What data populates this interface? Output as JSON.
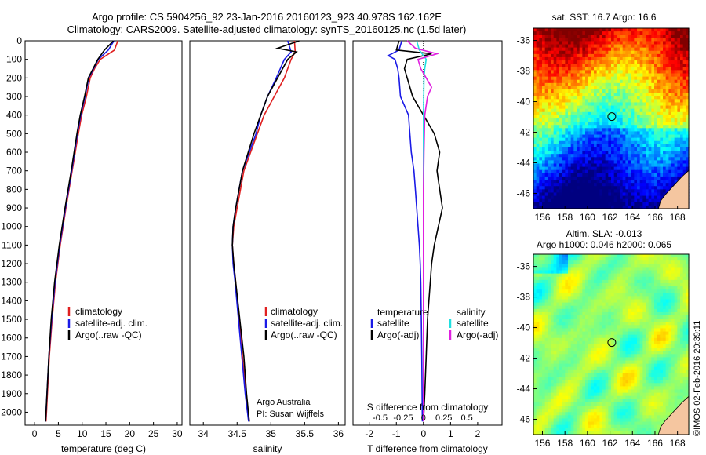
{
  "header": {
    "line1": "Argo profile: CS 5904256_92 23-Jan-2016 20160123_923 40.978S 162.162E",
    "line2": "Climatology: CARS2009. Satellite-adjusted climatology: synTS_20160125.nc (1.5d later)"
  },
  "watermark": "©IMOS 02-Feb-2016 20:39:11",
  "colors": {
    "climatology": "#e02020",
    "satellite": "#1a1ae6",
    "argo": "#000000",
    "satellite_salinity": "#20e0e0",
    "argo_salinity": "#e020e0",
    "land": "#f5c6a0"
  },
  "chart_data": [
    {
      "type": "line",
      "name_key": "temperature_profile",
      "xlabel": "temperature (deg C)",
      "ylabel": "",
      "xlim": [
        -2,
        31
      ],
      "ylim": [
        2070,
        0
      ],
      "xticks": [
        0,
        5,
        10,
        15,
        20,
        25,
        30
      ],
      "yticks": [
        0,
        100,
        200,
        300,
        400,
        500,
        600,
        700,
        800,
        900,
        1000,
        1100,
        1200,
        1300,
        1400,
        1500,
        1600,
        1700,
        1800,
        1900,
        2000
      ],
      "legend": [
        "climatology",
        "satellite-adj. clim.",
        "Argo(..raw -QC)"
      ],
      "legend_placement": "lower-center",
      "series": [
        {
          "name": "climatology",
          "depth": [
            0,
            50,
            100,
            150,
            200,
            300,
            400,
            500,
            700,
            900,
            1100,
            1300,
            1500,
            1700,
            1900,
            2050
          ],
          "values": [
            17.5,
            16.8,
            13.8,
            12.6,
            11.7,
            10.9,
            9.9,
            9.2,
            7.9,
            6.6,
            5.4,
            4.4,
            3.7,
            3.1,
            2.7,
            2.4
          ]
        },
        {
          "name": "satellite-adj. clim.",
          "depth": [
            0,
            50,
            100,
            150,
            200,
            300,
            400,
            500,
            700,
            900,
            1100,
            1300,
            1500,
            1700,
            1900,
            2050
          ],
          "values": [
            16.7,
            15.5,
            13.4,
            12.4,
            11.4,
            10.6,
            9.7,
            9.0,
            7.8,
            6.5,
            5.3,
            4.3,
            3.6,
            3.0,
            2.6,
            2.3
          ]
        },
        {
          "name": "Argo(..raw -QC)",
          "depth": [
            0,
            50,
            100,
            150,
            200,
            300,
            400,
            500,
            700,
            900,
            1100,
            1300,
            1500,
            1700,
            1900,
            2050
          ],
          "values": [
            16.6,
            14.7,
            13.3,
            12.3,
            11.3,
            10.5,
            9.6,
            8.9,
            7.7,
            6.4,
            5.2,
            4.2,
            3.5,
            3.0,
            2.6,
            2.3
          ]
        }
      ]
    },
    {
      "type": "line",
      "name_key": "salinity_profile",
      "xlabel": "salinity",
      "xlim": [
        33.8,
        36.1
      ],
      "ylim": [
        2070,
        0
      ],
      "xticks": [
        34,
        34.5,
        35,
        35.5,
        36
      ],
      "legend": [
        "climatology",
        "satellite-adj. clim.",
        "Argo(..raw -QC)"
      ],
      "legend_placement": "lower-center",
      "annotation": [
        "Argo Australia",
        "PI: Susan Wijffels"
      ],
      "series": [
        {
          "name": "climatology",
          "depth": [
            0,
            60,
            100,
            200,
            300,
            400,
            500,
            700,
            900,
            1000,
            1100,
            1200,
            1300,
            1500,
            1700,
            1900,
            2050
          ],
          "values": [
            35.35,
            35.36,
            35.3,
            35.2,
            35.05,
            34.9,
            34.8,
            34.6,
            34.5,
            34.45,
            34.43,
            34.45,
            34.48,
            34.53,
            34.58,
            34.63,
            34.68
          ]
        },
        {
          "name": "satellite-adj. clim.",
          "depth": [
            0,
            60,
            100,
            200,
            300,
            400,
            500,
            700,
            900,
            1000,
            1100,
            1200,
            1300,
            1500,
            1700,
            1900,
            2050
          ],
          "values": [
            35.25,
            35.3,
            35.2,
            35.08,
            34.95,
            34.85,
            34.78,
            34.58,
            34.48,
            34.44,
            34.43,
            34.44,
            34.47,
            34.52,
            34.57,
            34.62,
            34.67
          ]
        },
        {
          "name": "Argo(..raw -QC)",
          "depth": [
            0,
            40,
            60,
            100,
            200,
            300,
            400,
            500,
            700,
            900,
            1000,
            1100,
            1200,
            1300,
            1500,
            1700,
            1900,
            2050
          ],
          "values": [
            35.42,
            35.1,
            35.38,
            35.25,
            35.1,
            34.95,
            34.85,
            34.75,
            34.58,
            34.48,
            34.44,
            34.43,
            34.45,
            34.48,
            34.54,
            34.6,
            34.64,
            34.68
          ]
        }
      ]
    },
    {
      "type": "line",
      "name_key": "difference_profile",
      "xlabel": "T difference from climatology",
      "top_xlabel": "S difference from climatology",
      "xlim": [
        -2.6,
        2.9
      ],
      "ylim": [
        2070,
        0
      ],
      "xticks": [
        -2,
        -1,
        0,
        1,
        2
      ],
      "top_xticks": [
        {
          "label": "-0.5",
          "at": -1.6
        },
        {
          "label": "-0.25",
          "at": -0.75
        },
        {
          "label": "0",
          "at": 0
        },
        {
          "label": "0.25",
          "at": 0.75
        },
        {
          "label": "0.5",
          "at": 1.6
        }
      ],
      "legend_titles": {
        "left": "temperature",
        "right": "salinity"
      },
      "legend": [
        {
          "group": "temperature",
          "label": "satellite"
        },
        {
          "group": "temperature",
          "label": "Argo(-adj)"
        },
        {
          "group": "salinity",
          "label": "satellite"
        },
        {
          "group": "salinity",
          "label": "Argo(-adj)"
        }
      ],
      "series": [
        {
          "name": "temperature satellite",
          "depth": [
            0,
            50,
            80,
            100,
            150,
            200,
            300,
            400,
            500,
            600,
            700,
            800,
            900,
            1000,
            1100,
            1200,
            1300,
            1500,
            1700,
            1900,
            2050
          ],
          "values": [
            -0.8,
            -0.9,
            -1.3,
            -1.05,
            -0.95,
            -0.9,
            -0.85,
            -0.55,
            -0.5,
            -0.45,
            -0.35,
            -0.3,
            -0.25,
            -0.2,
            -0.15,
            -0.12,
            -0.1,
            -0.08,
            -0.06,
            -0.05,
            -0.04
          ]
        },
        {
          "name": "temperature Argo(-adj)",
          "depth": [
            0,
            50,
            70,
            100,
            150,
            200,
            300,
            400,
            500,
            600,
            700,
            800,
            900,
            1000,
            1100,
            1200,
            1300,
            1500,
            1700,
            1900,
            2050
          ],
          "values": [
            -0.9,
            -1.0,
            0.3,
            -0.6,
            -0.7,
            -0.6,
            -0.4,
            0.0,
            0.4,
            0.6,
            0.5,
            0.6,
            0.7,
            0.55,
            0.4,
            0.3,
            0.25,
            0.15,
            0.1,
            0.05,
            0.0
          ]
        },
        {
          "name": "salinity satellite",
          "depth": [
            0,
            50,
            100,
            150,
            200,
            300,
            400,
            600,
            800,
            1000,
            1200,
            1500,
            1800,
            2050
          ],
          "values": [
            -0.25,
            -0.15,
            0.1,
            0.05,
            0.02,
            0.01,
            0.0,
            0.0,
            0.0,
            0.0,
            0.0,
            0.0,
            0.0,
            0.0
          ]
        },
        {
          "name": "salinity Argo(-adj)",
          "depth": [
            0,
            40,
            70,
            100,
            150,
            200,
            250,
            300,
            400,
            600,
            800,
            1000,
            1200,
            1500,
            1800,
            2050
          ],
          "values": [
            -0.6,
            -0.3,
            0.5,
            -0.2,
            -0.1,
            0.1,
            0.3,
            0.15,
            0.05,
            0.02,
            0.0,
            0.0,
            0.0,
            0.0,
            0.0,
            0.0
          ]
        }
      ]
    },
    {
      "type": "heatmap",
      "name_key": "sst_map",
      "title": "sat. SST: 16.7 Argo: 16.6",
      "xticks": [
        156,
        158,
        160,
        162,
        164,
        166,
        168
      ],
      "yticks": [
        -36,
        -38,
        -40,
        -42,
        -44,
        -46
      ],
      "xlim": [
        155.2,
        169.0
      ],
      "ylim": [
        -47.0,
        -35.2
      ],
      "marker": {
        "lon": 162.162,
        "lat": -40.978
      }
    },
    {
      "type": "heatmap",
      "name_key": "sla_map",
      "title_lines": [
        "Altim. SLA: -0.013",
        "Argo h1000: 0.046 h2000: 0.065"
      ],
      "xticks": [
        156,
        158,
        160,
        162,
        164,
        166,
        168
      ],
      "yticks": [
        -36,
        -38,
        -40,
        -42,
        -44,
        -46
      ],
      "xlim": [
        155.2,
        169.0
      ],
      "ylim": [
        -47.0,
        -35.2
      ],
      "marker": {
        "lon": 162.162,
        "lat": -40.978
      }
    }
  ],
  "panels": {
    "temperature": {
      "legend": [
        "climatology",
        "satellite-adj. clim.",
        "Argo(..raw -QC)"
      ]
    },
    "salinity": {
      "legend": [
        "climatology",
        "satellite-adj. clim.",
        "Argo(..raw -QC)"
      ],
      "note1": "Argo Australia",
      "note2": "PI: Susan Wijffels"
    },
    "difference": {
      "temp_title": "temperature",
      "sal_title": "salinity",
      "t_sat": "satellite",
      "t_argo": "Argo(-adj)",
      "s_sat": "satellite",
      "s_argo": "Argo(-adj)"
    }
  }
}
